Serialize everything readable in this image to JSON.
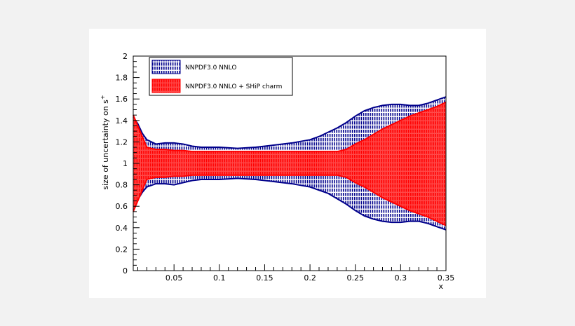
{
  "chart_data": {
    "type": "area",
    "xlabel": "x",
    "ylabel": "size of uncertainty on s",
    "ylabel_superscript": "+",
    "xlim": [
      0.005,
      0.35
    ],
    "ylim": [
      0,
      2
    ],
    "x_ticks": [
      "0.05",
      "0.1",
      "0.15",
      "0.2",
      "0.25",
      "0.3",
      "0.35"
    ],
    "x_tick_values": [
      0.05,
      0.1,
      0.15,
      0.2,
      0.25,
      0.3,
      0.35
    ],
    "y_ticks": [
      "0",
      "0.2",
      "0.4",
      "0.6",
      "0.8",
      "1",
      "1.2",
      "1.4",
      "1.6",
      "1.8",
      "2"
    ],
    "y_tick_values": [
      0,
      0.2,
      0.4,
      0.6,
      0.8,
      1.0,
      1.2,
      1.4,
      1.6,
      1.8,
      2.0
    ],
    "grid": false,
    "legend_position": "top-left",
    "x": [
      0.005,
      0.01,
      0.015,
      0.02,
      0.03,
      0.04,
      0.05,
      0.06,
      0.07,
      0.08,
      0.1,
      0.12,
      0.14,
      0.16,
      0.18,
      0.2,
      0.21,
      0.22,
      0.23,
      0.24,
      0.25,
      0.26,
      0.27,
      0.28,
      0.29,
      0.3,
      0.31,
      0.32,
      0.33,
      0.34,
      0.35
    ],
    "series": [
      {
        "name": "NNPDF3.0 NNLO",
        "color": "#00008b",
        "upper": [
          1.43,
          1.37,
          1.28,
          1.22,
          1.18,
          1.19,
          1.19,
          1.18,
          1.16,
          1.15,
          1.15,
          1.14,
          1.15,
          1.17,
          1.19,
          1.22,
          1.25,
          1.29,
          1.33,
          1.38,
          1.44,
          1.49,
          1.52,
          1.54,
          1.55,
          1.55,
          1.54,
          1.54,
          1.56,
          1.59,
          1.62
        ],
        "lower": [
          0.57,
          0.66,
          0.73,
          0.78,
          0.81,
          0.81,
          0.8,
          0.82,
          0.84,
          0.85,
          0.85,
          0.86,
          0.85,
          0.83,
          0.81,
          0.78,
          0.75,
          0.72,
          0.67,
          0.62,
          0.56,
          0.51,
          0.48,
          0.46,
          0.45,
          0.45,
          0.46,
          0.46,
          0.44,
          0.41,
          0.38
        ]
      },
      {
        "name": "NNPDF3.0 NNLO + SHiP charm",
        "color": "#ff0000",
        "upper": [
          1.45,
          1.35,
          1.25,
          1.15,
          1.13,
          1.13,
          1.12,
          1.12,
          1.11,
          1.11,
          1.11,
          1.11,
          1.11,
          1.11,
          1.11,
          1.11,
          1.11,
          1.11,
          1.11,
          1.13,
          1.18,
          1.22,
          1.27,
          1.32,
          1.36,
          1.4,
          1.44,
          1.47,
          1.5,
          1.53,
          1.57
        ],
        "lower": [
          0.55,
          0.65,
          0.75,
          0.85,
          0.87,
          0.87,
          0.88,
          0.88,
          0.89,
          0.89,
          0.89,
          0.89,
          0.89,
          0.89,
          0.89,
          0.89,
          0.89,
          0.89,
          0.89,
          0.87,
          0.82,
          0.78,
          0.73,
          0.68,
          0.64,
          0.6,
          0.56,
          0.53,
          0.5,
          0.46,
          0.42
        ]
      }
    ]
  }
}
